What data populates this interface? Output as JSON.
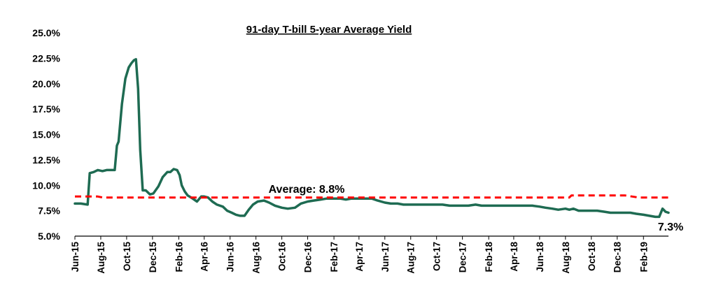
{
  "chart_data": {
    "type": "line",
    "title": "91-day T-bill 5-year Average Yield",
    "xlabel": "",
    "ylabel": "",
    "ylim": [
      5.0,
      25.0
    ],
    "y_ticks": [
      "5.0%",
      "7.5%",
      "10.0%",
      "12.5%",
      "15.0%",
      "17.5%",
      "20.0%",
      "22.5%",
      "25.0%"
    ],
    "x_ticks": [
      "Jun-15",
      "Aug-15",
      "Oct-15",
      "Dec-15",
      "Feb-16",
      "Apr-16",
      "Jun-16",
      "Aug-16",
      "Oct-16",
      "Dec-16",
      "Feb-17",
      "Apr-17",
      "Jun-17",
      "Aug-17",
      "Oct-17",
      "Dec-17",
      "Feb-18",
      "Apr-18",
      "Jun-18",
      "Aug-18",
      "Oct-18",
      "Dec-18",
      "Feb-19"
    ],
    "grid": false,
    "legend": "none",
    "annotations": {
      "average_label": "Average: 8.8%",
      "last_label": "7.3%"
    },
    "series": [
      {
        "role": "yield",
        "color": "#1e6b52",
        "x": [
          "2015-06-01",
          "2015-06-15",
          "2015-07-01",
          "2015-07-06",
          "2015-07-15",
          "2015-07-25",
          "2015-08-05",
          "2015-08-15",
          "2015-08-25",
          "2015-09-03",
          "2015-09-08",
          "2015-09-12",
          "2015-09-20",
          "2015-09-28",
          "2015-10-06",
          "2015-10-12",
          "2015-10-18",
          "2015-10-23",
          "2015-10-28",
          "2015-11-02",
          "2015-11-08",
          "2015-11-15",
          "2015-11-25",
          "2015-12-03",
          "2015-12-15",
          "2015-12-25",
          "2016-01-05",
          "2016-01-12",
          "2016-01-20",
          "2016-01-28",
          "2016-02-03",
          "2016-02-08",
          "2016-02-15",
          "2016-02-22",
          "2016-03-01",
          "2016-03-15",
          "2016-03-25",
          "2016-04-01",
          "2016-04-10",
          "2016-04-20",
          "2016-05-01",
          "2016-05-15",
          "2016-05-25",
          "2016-06-05",
          "2016-06-15",
          "2016-06-25",
          "2016-07-05",
          "2016-07-15",
          "2016-07-25",
          "2016-08-05",
          "2016-08-20",
          "2016-09-01",
          "2016-09-15",
          "2016-10-01",
          "2016-10-15",
          "2016-11-01",
          "2016-11-15",
          "2016-12-01",
          "2016-12-15",
          "2017-01-01",
          "2017-01-15",
          "2017-02-01",
          "2017-02-15",
          "2017-03-01",
          "2017-03-15",
          "2017-04-01",
          "2017-04-15",
          "2017-05-01",
          "2017-05-15",
          "2017-06-01",
          "2017-06-15",
          "2017-07-01",
          "2017-07-15",
          "2017-08-01",
          "2017-08-15",
          "2017-09-01",
          "2017-09-15",
          "2017-10-01",
          "2017-10-15",
          "2017-11-01",
          "2017-11-15",
          "2017-12-01",
          "2017-12-15",
          "2018-01-01",
          "2018-01-15",
          "2018-02-01",
          "2018-02-15",
          "2018-03-01",
          "2018-03-15",
          "2018-04-01",
          "2018-04-15",
          "2018-05-01",
          "2018-05-15",
          "2018-06-01",
          "2018-06-15",
          "2018-07-01",
          "2018-07-15",
          "2018-08-01",
          "2018-08-10",
          "2018-08-20",
          "2018-09-01",
          "2018-09-15",
          "2018-10-01",
          "2018-10-15",
          "2018-11-01",
          "2018-11-15",
          "2018-12-01",
          "2018-12-15",
          "2019-01-01",
          "2019-01-15",
          "2019-02-01",
          "2019-02-15",
          "2019-03-01",
          "2019-03-10",
          "2019-03-18",
          "2019-03-25",
          "2019-04-01"
        ],
        "y": [
          8.2,
          8.2,
          8.1,
          11.2,
          11.3,
          11.5,
          11.4,
          11.5,
          11.5,
          11.5,
          13.9,
          14.3,
          18.0,
          20.5,
          21.6,
          22.0,
          22.3,
          22.4,
          19.5,
          13.5,
          9.5,
          9.5,
          9.1,
          9.2,
          9.9,
          10.8,
          11.3,
          11.3,
          11.6,
          11.5,
          11.0,
          10.0,
          9.4,
          9.0,
          8.8,
          8.4,
          8.9,
          8.9,
          8.8,
          8.4,
          8.1,
          7.9,
          7.5,
          7.3,
          7.1,
          7.0,
          7.0,
          7.6,
          8.1,
          8.4,
          8.5,
          8.3,
          8.0,
          7.8,
          7.7,
          7.8,
          8.2,
          8.4,
          8.5,
          8.6,
          8.7,
          8.7,
          8.7,
          8.6,
          8.7,
          8.7,
          8.7,
          8.7,
          8.5,
          8.3,
          8.2,
          8.2,
          8.1,
          8.1,
          8.1,
          8.1,
          8.1,
          8.1,
          8.1,
          8.0,
          8.0,
          8.0,
          8.0,
          8.1,
          8.0,
          8.0,
          8.0,
          8.0,
          8.0,
          8.0,
          8.0,
          8.0,
          8.0,
          7.9,
          7.8,
          7.7,
          7.6,
          7.7,
          7.6,
          7.7,
          7.5,
          7.5,
          7.5,
          7.5,
          7.4,
          7.3,
          7.3,
          7.3,
          7.3,
          7.2,
          7.1,
          7.0,
          6.9,
          6.9,
          7.7,
          7.4,
          7.3
        ]
      },
      {
        "role": "average",
        "color": "#ff0000",
        "dashed": true,
        "x": [
          "2015-06-01",
          "2015-07-25",
          "2015-08-05",
          "2018-08-10",
          "2018-08-15",
          "2018-12-20",
          "2019-01-20",
          "2019-04-01"
        ],
        "y": [
          8.9,
          8.9,
          8.8,
          8.8,
          9.0,
          9.0,
          8.8,
          8.8
        ]
      }
    ]
  }
}
